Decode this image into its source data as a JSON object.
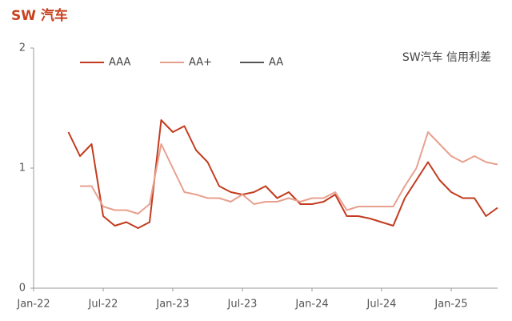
{
  "chart_data": {
    "type": "line",
    "title": "SW 汽车",
    "annotation": "SW汽车 信用利差",
    "x": [
      "2022-04",
      "2022-05",
      "2022-06",
      "2022-07",
      "2022-08",
      "2022-09",
      "2022-10",
      "2022-11",
      "2022-12",
      "2023-01",
      "2023-02",
      "2023-03",
      "2023-04",
      "2023-05",
      "2023-06",
      "2023-07",
      "2023-08",
      "2023-09",
      "2023-10",
      "2023-11",
      "2023-12",
      "2024-01",
      "2024-02",
      "2024-03",
      "2024-04",
      "2024-05",
      "2024-06",
      "2024-07",
      "2024-08",
      "2024-09",
      "2024-10",
      "2024-11",
      "2024-12",
      "2025-01",
      "2025-02",
      "2025-03",
      "2025-04",
      "2025-05"
    ],
    "series": [
      {
        "name": "AAA",
        "color": "#c23b1e",
        "values": [
          1.3,
          1.1,
          1.2,
          0.6,
          0.52,
          0.55,
          0.5,
          0.55,
          1.4,
          1.3,
          1.35,
          1.15,
          1.05,
          0.85,
          0.8,
          0.78,
          0.8,
          0.85,
          0.75,
          0.8,
          0.7,
          0.7,
          0.72,
          0.78,
          0.6,
          0.6,
          0.58,
          0.55,
          0.52,
          0.75,
          0.9,
          1.05,
          0.9,
          0.8,
          0.75,
          0.75,
          0.6,
          0.67
        ]
      },
      {
        "name": "AA+",
        "color": "#e8a08e",
        "values": [
          null,
          0.85,
          0.85,
          0.68,
          0.65,
          0.65,
          0.62,
          0.7,
          1.2,
          1.0,
          0.8,
          0.78,
          0.75,
          0.75,
          0.72,
          0.78,
          0.7,
          0.72,
          0.72,
          0.75,
          0.72,
          0.75,
          0.75,
          0.8,
          0.65,
          0.68,
          0.68,
          0.68,
          0.68,
          0.85,
          1.0,
          1.3,
          1.2,
          1.1,
          1.05,
          1.1,
          1.05,
          1.03
        ]
      },
      {
        "name": "AA",
        "color": "#555555",
        "values": [
          null,
          null,
          null,
          null,
          null,
          null,
          null,
          null,
          null,
          null,
          null,
          null,
          null,
          null,
          null,
          null,
          null,
          null,
          null,
          null,
          null,
          null,
          null,
          null,
          null,
          null,
          null,
          null,
          null,
          null,
          null,
          null,
          null,
          null,
          null,
          null,
          null,
          null
        ]
      }
    ],
    "xlim": [
      "2022-01",
      "2025-05"
    ],
    "xticks": [
      {
        "value": "2022-01",
        "label": "Jan-22"
      },
      {
        "value": "2022-07",
        "label": "Jul-22"
      },
      {
        "value": "2023-01",
        "label": "Jan-23"
      },
      {
        "value": "2023-07",
        "label": "Jul-23"
      },
      {
        "value": "2024-01",
        "label": "Jan-24"
      },
      {
        "value": "2024-07",
        "label": "Jul-24"
      },
      {
        "value": "2025-01",
        "label": "Jan-25"
      }
    ],
    "ylim": [
      0,
      2
    ],
    "yticks": [
      0,
      1,
      2
    ],
    "legend": "top-left"
  }
}
